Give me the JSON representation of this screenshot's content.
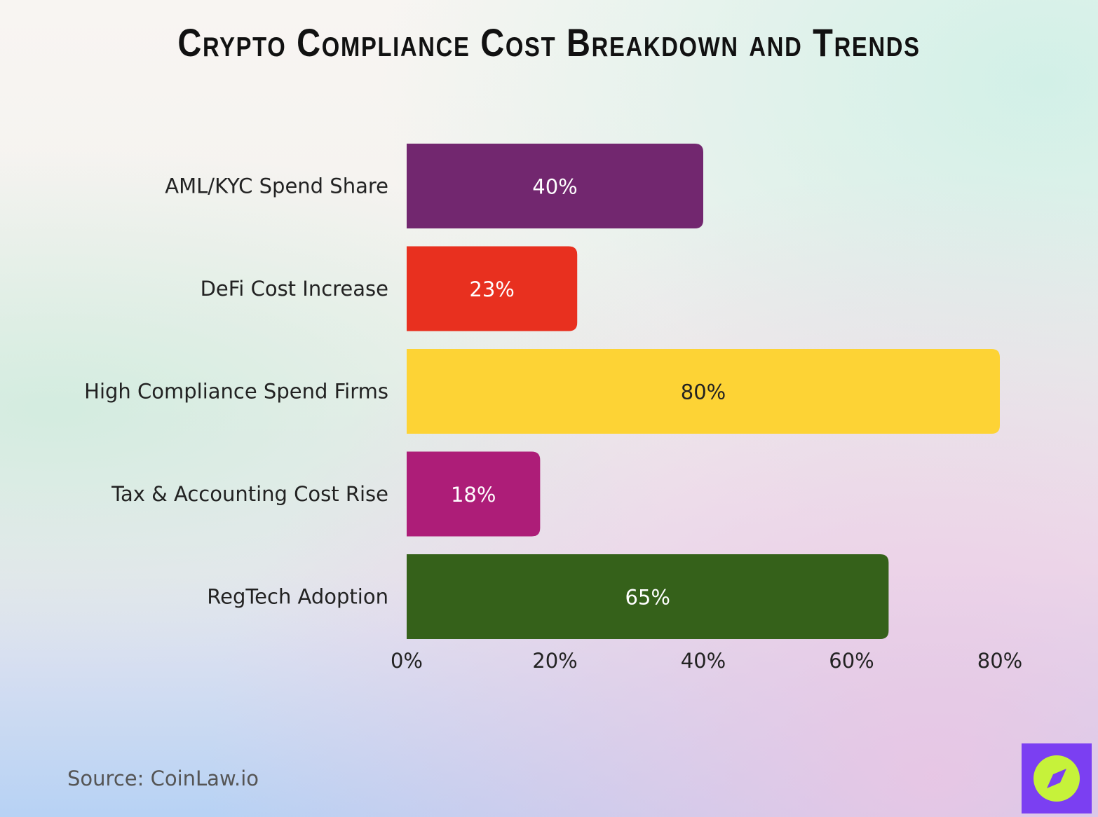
{
  "header": {
    "title": "Crypto Compliance Cost Breakdown and Trends"
  },
  "chart_data": {
    "type": "bar",
    "orientation": "horizontal",
    "title": "Crypto Compliance Cost Breakdown and Trends",
    "categories": [
      "AML/KYC Spend Share",
      "DeFi Cost Increase",
      "High Compliance Spend Firms",
      "Tax & Accounting Cost Rise",
      "RegTech Adoption"
    ],
    "values": [
      40,
      23,
      80,
      18,
      65
    ],
    "value_labels": [
      "40%",
      "23%",
      "80%",
      "18%",
      "65%"
    ],
    "bar_colors": [
      "#72276f",
      "#e8301f",
      "#fdd335",
      "#ad1d78",
      "#35611a"
    ],
    "value_label_colors": [
      "#ffffff",
      "#ffffff",
      "#222222",
      "#ffffff",
      "#ffffff"
    ],
    "xlim": [
      0,
      80
    ],
    "ticks": [
      0,
      20,
      40,
      60,
      80
    ],
    "tick_labels": [
      "0%",
      "20%",
      "40%",
      "60%",
      "80%"
    ],
    "xlabel": "",
    "ylabel": "",
    "grid": false,
    "legend": "none"
  },
  "footer": {
    "source": "Source: CoinLaw.io"
  },
  "brand": {
    "logo_icon": "compass-icon",
    "logo_color": "#7b3ff2",
    "logo_accent": "#c6f23a"
  }
}
